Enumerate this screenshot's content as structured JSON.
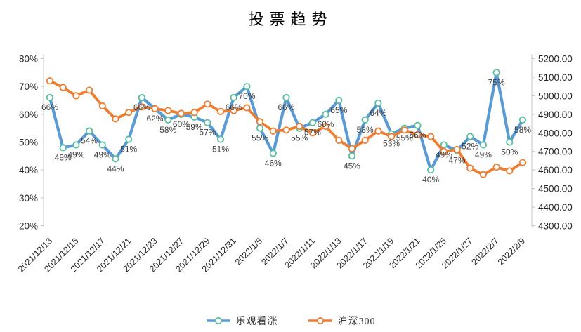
{
  "title": "投票趋势",
  "colors": {
    "background": "#ffffff",
    "axis_line": "#c6c6c6",
    "tick_text": "#262626",
    "data_label_text": "#404040",
    "blue_line": "#5b9bd5",
    "blue_marker_ring": "#5abe9e",
    "orange_line": "#ed7d31"
  },
  "chart_data": {
    "type": "line",
    "title": "投票趋势",
    "grid": false,
    "legend_position": "bottom",
    "x_tick_labels": [
      "2021/12/13",
      "2021/12/15",
      "2021/12/17",
      "2021/12/21",
      "2021/12/23",
      "2021/12/27",
      "2021/12/29",
      "2021/12/31",
      "2022/1/5",
      "2022/1/7",
      "2022/1/11",
      "2022/1/13",
      "2022/1/17",
      "2022/1/19",
      "2022/1/21",
      "2022/1/25",
      "2022/1/27",
      "2022/2/7",
      "2022/2/9"
    ],
    "label_every_n_points": 2,
    "left_axis": {
      "min": 20,
      "max": 80,
      "ticks": [
        "80%",
        "70%",
        "60%",
        "50%",
        "40%",
        "30%",
        "20%"
      ]
    },
    "right_axis": {
      "min": 4300,
      "max": 5200,
      "ticks": [
        "5200.00",
        "5100.00",
        "5000.00",
        "4900.00",
        "4800.00",
        "4700.00",
        "4600.00",
        "4500.00",
        "4400.00",
        "4300.00"
      ]
    },
    "series": [
      {
        "name": "乐观看涨",
        "axis": "left",
        "line_color": "#5b9bd5",
        "marker_ring_color": "#5abe9e",
        "values": [
          66,
          48,
          49,
          54,
          49,
          44,
          51,
          66,
          62,
          58,
          60,
          59,
          57,
          51,
          66,
          70,
          55,
          46,
          66,
          55,
          57,
          60,
          65,
          45,
          58,
          64,
          53,
          55,
          56,
          40,
          49,
          47,
          52,
          49,
          75,
          50,
          58
        ],
        "point_labels": [
          "66%",
          "48%",
          "49%",
          "54%",
          "49%",
          "44%",
          "51%",
          "66%",
          "62%",
          "58%",
          "60%",
          "59%",
          "57%",
          "51%",
          "66%",
          "70%",
          "55%",
          "46%",
          "66%",
          "55%",
          "57%",
          "60%",
          "65%",
          "45%",
          "58%",
          "64%",
          "53%",
          "55%",
          "56%",
          "40%",
          "49%",
          "47%",
          "52%",
          "49%",
          "75%",
          "50%",
          "58%"
        ]
      },
      {
        "name": "沪深300",
        "axis": "right",
        "line_color": "#ed7d31",
        "marker_ring_color": "#ed7d31",
        "values": [
          5080,
          5045,
          5000,
          5030,
          4945,
          4875,
          4910,
          4940,
          4930,
          4920,
          4905,
          4910,
          4955,
          4915,
          4920,
          4935,
          4860,
          4810,
          4815,
          4835,
          4800,
          4835,
          4760,
          4715,
          4760,
          4810,
          4780,
          4815,
          4790,
          4780,
          4700,
          4710,
          4610,
          4575,
          4615,
          4595,
          4640
        ],
        "point_labels": []
      }
    ]
  }
}
